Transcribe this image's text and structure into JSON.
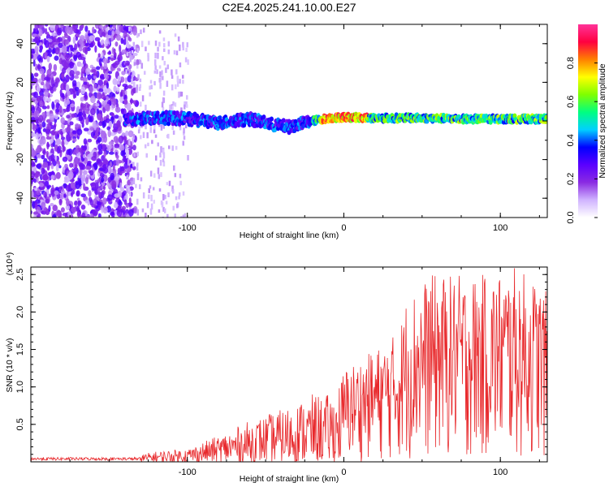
{
  "title": "C2E4.2025.241.10.00.E27",
  "chart_data": [
    {
      "type": "heatmap",
      "xlabel": "Height of straight line (km)",
      "ylabel": "Frequency (Hz)",
      "xlim": [
        -200,
        130
      ],
      "ylim": [
        -50,
        50
      ],
      "xticks": [
        -100,
        0,
        100
      ],
      "xtick_labels": [
        "-100",
        "0",
        "100"
      ],
      "yticks": [
        -40,
        -20,
        0,
        20,
        40
      ],
      "ytick_labels": [
        "-40",
        "-20",
        "0",
        "20",
        "40"
      ],
      "colorbar": {
        "label": "Normalized spectral amplitude",
        "range": [
          0.0,
          1.0
        ],
        "ticks": [
          0.0,
          0.2,
          0.4,
          0.6,
          0.8
        ],
        "tick_labels": [
          "0.0",
          "0.2",
          "0.4",
          "0.6",
          "0.8"
        ],
        "colors": [
          "#ffffff",
          "#d0b3ff",
          "#8a2be2",
          "#5a00ff",
          "#0000ff",
          "#00d0ff",
          "#00ff80",
          "#7fff00",
          "#ffff00",
          "#ff8000",
          "#ff0040",
          "#ff3399"
        ]
      },
      "noise_region_x": [
        -200,
        -140
      ],
      "signal_trace": [
        {
          "x": -140,
          "y": 0
        },
        {
          "x": -120,
          "y": 2
        },
        {
          "x": -100,
          "y": 1
        },
        {
          "x": -80,
          "y": -1
        },
        {
          "x": -60,
          "y": 1
        },
        {
          "x": -45,
          "y": -2
        },
        {
          "x": -35,
          "y": -3
        },
        {
          "x": -20,
          "y": 0
        },
        {
          "x": -10,
          "y": 1.5
        },
        {
          "x": 0,
          "y": 2
        },
        {
          "x": 20,
          "y": 1.5
        },
        {
          "x": 50,
          "y": 1.5
        },
        {
          "x": 80,
          "y": 1
        },
        {
          "x": 100,
          "y": 1
        },
        {
          "x": 130,
          "y": 1
        }
      ]
    },
    {
      "type": "line",
      "xlabel": "Height of straight line (km)",
      "ylabel": "SNR (10 * v/v)",
      "yscale_label": "(x10⁴)",
      "xlim": [
        -200,
        130
      ],
      "ylim": [
        0,
        2.6
      ],
      "xticks": [
        -100,
        0,
        100
      ],
      "xtick_labels": [
        "-100",
        "0",
        "100"
      ],
      "yticks": [
        0.5,
        1.0,
        1.5,
        2.0,
        2.5
      ],
      "ytick_labels": [
        "0.5",
        "1.0",
        "1.5",
        "2.0",
        "2.5"
      ],
      "color": "#e8282b",
      "envelope": [
        {
          "x": -200,
          "y": 0.05
        },
        {
          "x": -140,
          "y": 0.06
        },
        {
          "x": -120,
          "y": 0.14
        },
        {
          "x": -100,
          "y": 0.18
        },
        {
          "x": -80,
          "y": 0.35
        },
        {
          "x": -60,
          "y": 0.55
        },
        {
          "x": -40,
          "y": 0.7
        },
        {
          "x": -20,
          "y": 0.9
        },
        {
          "x": -10,
          "y": 0.9
        },
        {
          "x": -5,
          "y": 0.95
        },
        {
          "x": 0,
          "y": 1.25
        },
        {
          "x": 20,
          "y": 1.5
        },
        {
          "x": 35,
          "y": 1.75
        },
        {
          "x": 40,
          "y": 2.2
        },
        {
          "x": 55,
          "y": 2.5
        },
        {
          "x": 70,
          "y": 2.5
        },
        {
          "x": 90,
          "y": 2.5
        },
        {
          "x": 110,
          "y": 2.6
        },
        {
          "x": 125,
          "y": 2.4
        },
        {
          "x": 130,
          "y": 2.25
        }
      ]
    }
  ]
}
